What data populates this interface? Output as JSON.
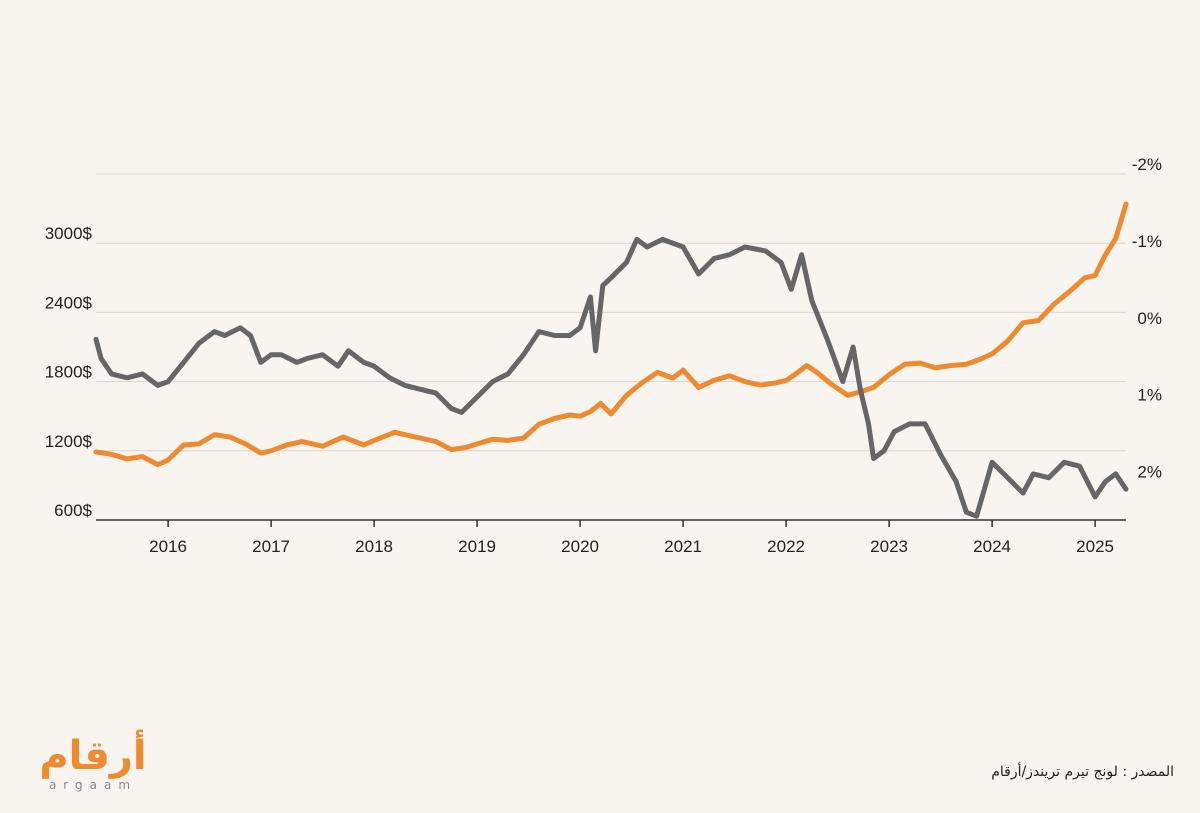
{
  "chart_data": {
    "type": "line",
    "x_ticks": [
      "2016",
      "2017",
      "2018",
      "2019",
      "2020",
      "2021",
      "2022",
      "2023",
      "2024",
      "2025"
    ],
    "left_axis": {
      "ticks": [
        "600$",
        "1200$",
        "1800$",
        "2400$",
        "3000$"
      ],
      "range": [
        600,
        3600
      ]
    },
    "right_axis": {
      "ticks": [
        "2%",
        "1%",
        "0%",
        "-1%",
        "-2%"
      ],
      "range": [
        2.5,
        -2
      ],
      "inverted": true
    },
    "grid": true,
    "series": [
      {
        "axis": "left",
        "color": "#ef8a2f",
        "x": [
          2015.3,
          2015.45,
          2015.6,
          2015.75,
          2015.9,
          2016.0,
          2016.15,
          2016.3,
          2016.45,
          2016.6,
          2016.75,
          2016.9,
          2017.0,
          2017.15,
          2017.3,
          2017.5,
          2017.7,
          2017.9,
          2018.0,
          2018.2,
          2018.4,
          2018.6,
          2018.75,
          2018.9,
          2019.0,
          2019.15,
          2019.3,
          2019.45,
          2019.6,
          2019.75,
          2019.9,
          2020.0,
          2020.1,
          2020.2,
          2020.3,
          2020.45,
          2020.6,
          2020.75,
          2020.9,
          2021.0,
          2021.15,
          2021.3,
          2021.45,
          2021.6,
          2021.75,
          2021.9,
          2022.0,
          2022.1,
          2022.2,
          2022.3,
          2022.45,
          2022.6,
          2022.75,
          2022.85,
          2023.0,
          2023.15,
          2023.3,
          2023.45,
          2023.6,
          2023.75,
          2023.9,
          2024.0,
          2024.15,
          2024.3,
          2024.45,
          2024.6,
          2024.75,
          2024.9,
          2025.0,
          2025.1,
          2025.2,
          2025.3
        ],
        "y": [
          1190,
          1170,
          1130,
          1150,
          1080,
          1120,
          1250,
          1260,
          1340,
          1320,
          1260,
          1180,
          1200,
          1250,
          1280,
          1240,
          1320,
          1250,
          1290,
          1360,
          1320,
          1280,
          1210,
          1230,
          1260,
          1300,
          1290,
          1310,
          1430,
          1480,
          1510,
          1500,
          1540,
          1610,
          1520,
          1680,
          1790,
          1880,
          1830,
          1900,
          1750,
          1810,
          1850,
          1800,
          1770,
          1790,
          1810,
          1870,
          1940,
          1880,
          1770,
          1680,
          1720,
          1750,
          1860,
          1950,
          1960,
          1920,
          1940,
          1950,
          2000,
          2040,
          2150,
          2310,
          2330,
          2470,
          2580,
          2700,
          2720,
          2900,
          3040,
          3340
        ]
      },
      {
        "axis": "right",
        "color": "#666666",
        "x": [
          2015.3,
          2015.35,
          2015.45,
          2015.6,
          2015.75,
          2015.9,
          2016.0,
          2016.15,
          2016.3,
          2016.45,
          2016.55,
          2016.7,
          2016.8,
          2016.9,
          2017.0,
          2017.1,
          2017.25,
          2017.35,
          2017.5,
          2017.65,
          2017.75,
          2017.9,
          2018.0,
          2018.15,
          2018.3,
          2018.45,
          2018.6,
          2018.75,
          2018.85,
          2019.0,
          2019.15,
          2019.3,
          2019.45,
          2019.6,
          2019.75,
          2019.9,
          2020.0,
          2020.1,
          2020.15,
          2020.22,
          2020.3,
          2020.45,
          2020.55,
          2020.65,
          2020.8,
          2021.0,
          2021.15,
          2021.3,
          2021.45,
          2021.6,
          2021.8,
          2021.95,
          2022.05,
          2022.15,
          2022.25,
          2022.4,
          2022.55,
          2022.65,
          2022.72,
          2022.8,
          2022.85,
          2022.95,
          2023.05,
          2023.2,
          2023.35,
          2023.5,
          2023.65,
          2023.75,
          2023.85,
          2024.0,
          2024.15,
          2024.3,
          2024.4,
          2024.55,
          2024.7,
          2024.85,
          2025.0,
          2025.1,
          2025.2,
          2025.3
        ],
        "y": [
          0.15,
          0.4,
          0.6,
          0.65,
          0.6,
          0.75,
          0.7,
          0.45,
          0.2,
          0.05,
          0.1,
          0.0,
          0.1,
          0.45,
          0.35,
          0.35,
          0.45,
          0.4,
          0.35,
          0.5,
          0.3,
          0.45,
          0.5,
          0.65,
          0.75,
          0.8,
          0.85,
          1.05,
          1.1,
          0.9,
          0.7,
          0.6,
          0.35,
          0.05,
          0.1,
          0.1,
          0.0,
          -0.4,
          0.3,
          -0.55,
          -0.65,
          -0.85,
          -1.15,
          -1.05,
          -1.15,
          -1.05,
          -0.7,
          -0.9,
          -0.95,
          -1.05,
          -1.0,
          -0.85,
          -0.5,
          -0.95,
          -0.35,
          0.15,
          0.7,
          0.25,
          0.8,
          1.25,
          1.7,
          1.6,
          1.35,
          1.25,
          1.25,
          1.65,
          2.0,
          2.4,
          2.45,
          1.75,
          1.95,
          2.15,
          1.9,
          1.95,
          1.75,
          1.8,
          2.2,
          2.0,
          1.9,
          2.1
        ]
      }
    ]
  },
  "logo": {
    "arabic": "أرقام",
    "latin": "argaam"
  },
  "source": "المصدر : لونج تيرم تريندز/أرقام"
}
